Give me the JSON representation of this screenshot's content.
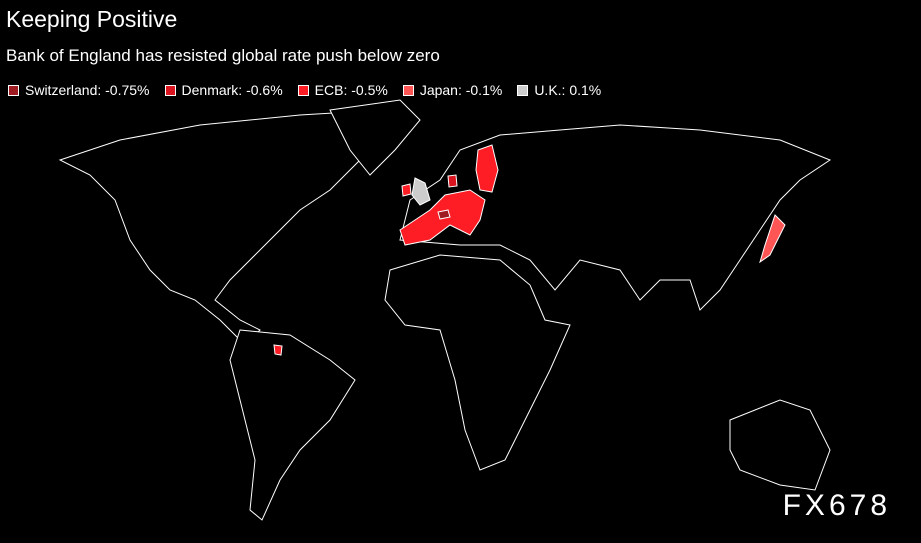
{
  "header": {
    "title": "Keeping Positive",
    "subtitle": "Bank of England has resisted global rate push below zero"
  },
  "legend": [
    {
      "label": "Switzerland: -0.75%",
      "color": "#9e1b22"
    },
    {
      "label": "Denmark: -0.6%",
      "color": "#d9141f"
    },
    {
      "label": "ECB: -0.5%",
      "color": "#ff1d25"
    },
    {
      "label": "Japan: -0.1%",
      "color": "#ff5555"
    },
    {
      "label": "U.K.: 0.1%",
      "color": "#cccccc"
    }
  ],
  "watermark": "FX678"
}
